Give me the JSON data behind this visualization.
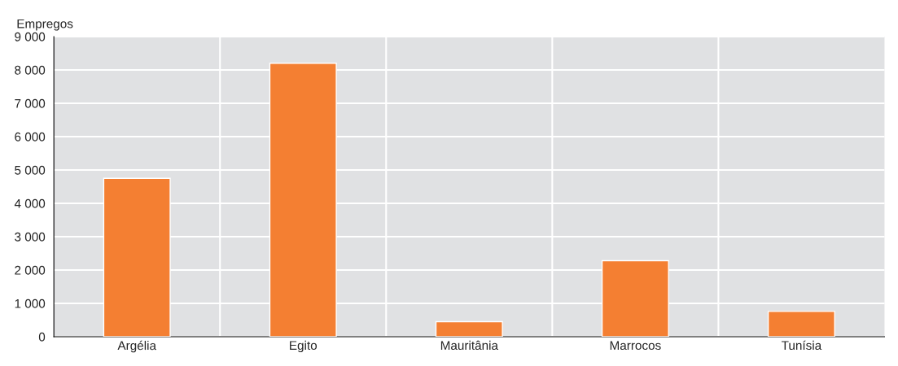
{
  "chart_data": {
    "type": "bar",
    "ylabel": "Empregos",
    "categories": [
      "Argélia",
      "Egito",
      "Mauritânia",
      "Marrocos",
      "Tunísia"
    ],
    "values": [
      4750,
      8200,
      450,
      2280,
      760
    ],
    "color": "#f47f32",
    "ylim": [
      0,
      9000
    ],
    "yticks": [
      0,
      {
        "value": 1000,
        "label": "1 000"
      },
      {
        "value": 2000,
        "label": "2 000"
      },
      {
        "value": 3000,
        "label": "3 000"
      },
      {
        "value": 4000,
        "label": "4 000"
      },
      {
        "value": 5000,
        "label": "5 000"
      },
      {
        "value": 6000,
        "label": "6 000"
      },
      {
        "value": 7000,
        "label": "7 000"
      },
      {
        "value": 8000,
        "label": "8 000"
      },
      {
        "value": 9000,
        "label": "9 000"
      }
    ],
    "grid": true,
    "legend": false
  }
}
